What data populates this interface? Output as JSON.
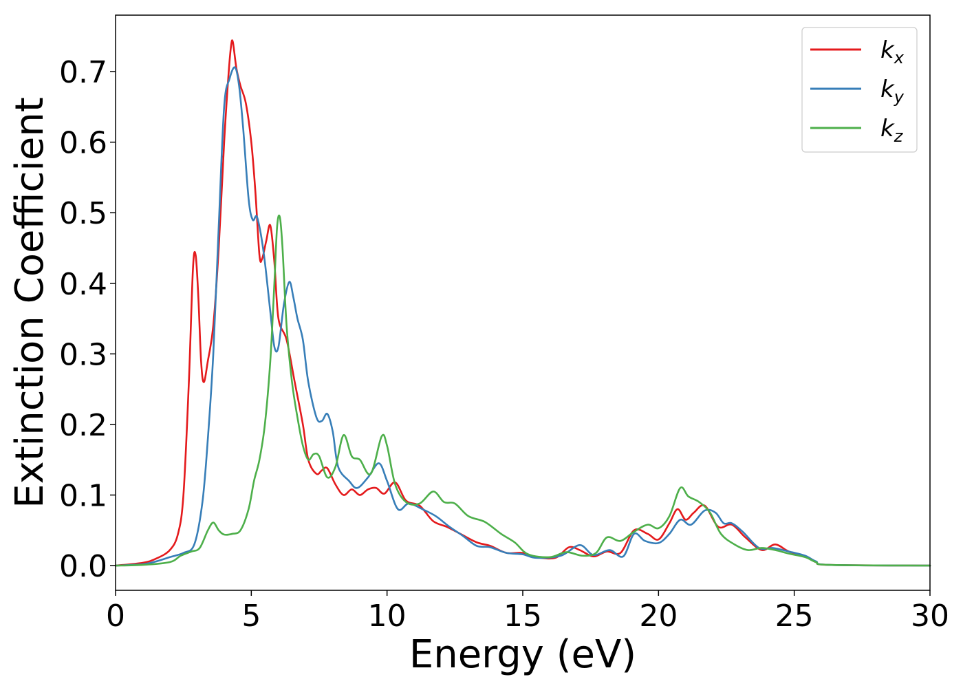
{
  "chart_data": {
    "type": "line",
    "title": "",
    "xlabel": "Energy (eV)",
    "ylabel": "Extinction Coefficient",
    "xlim": [
      0,
      30
    ],
    "ylim": [
      -0.035,
      0.78
    ],
    "xticks": [
      0,
      5,
      10,
      15,
      20,
      25,
      30
    ],
    "yticks": [
      0.0,
      0.1,
      0.2,
      0.3,
      0.4,
      0.5,
      0.6,
      0.7
    ],
    "grid": false,
    "legend_position": "top-right",
    "series": [
      {
        "name": "k_x",
        "label_main": "k",
        "label_sub": "x",
        "color": "#e41a1c",
        "points": [
          [
            0,
            0
          ],
          [
            1,
            0.004
          ],
          [
            1.5,
            0.01
          ],
          [
            2,
            0.022
          ],
          [
            2.3,
            0.045
          ],
          [
            2.5,
            0.1
          ],
          [
            2.7,
            0.26
          ],
          [
            2.85,
            0.42
          ],
          [
            2.95,
            0.44
          ],
          [
            3.05,
            0.38
          ],
          [
            3.15,
            0.29
          ],
          [
            3.25,
            0.26
          ],
          [
            3.4,
            0.29
          ],
          [
            3.6,
            0.34
          ],
          [
            3.8,
            0.45
          ],
          [
            4.0,
            0.6
          ],
          [
            4.15,
            0.69
          ],
          [
            4.25,
            0.735
          ],
          [
            4.32,
            0.742
          ],
          [
            4.45,
            0.705
          ],
          [
            4.6,
            0.68
          ],
          [
            4.8,
            0.655
          ],
          [
            5.0,
            0.6
          ],
          [
            5.15,
            0.53
          ],
          [
            5.3,
            0.44
          ],
          [
            5.4,
            0.435
          ],
          [
            5.55,
            0.46
          ],
          [
            5.7,
            0.482
          ],
          [
            5.85,
            0.43
          ],
          [
            6.0,
            0.35
          ],
          [
            6.3,
            0.32
          ],
          [
            6.6,
            0.26
          ],
          [
            6.9,
            0.2
          ],
          [
            7.1,
            0.15
          ],
          [
            7.4,
            0.13
          ],
          [
            7.6,
            0.135
          ],
          [
            7.8,
            0.138
          ],
          [
            8.1,
            0.115
          ],
          [
            8.4,
            0.1
          ],
          [
            8.7,
            0.108
          ],
          [
            9.0,
            0.1
          ],
          [
            9.3,
            0.108
          ],
          [
            9.6,
            0.11
          ],
          [
            9.9,
            0.102
          ],
          [
            10.3,
            0.118
          ],
          [
            10.7,
            0.092
          ],
          [
            11.2,
            0.085
          ],
          [
            11.7,
            0.063
          ],
          [
            12.2,
            0.055
          ],
          [
            12.7,
            0.045
          ],
          [
            13.3,
            0.033
          ],
          [
            13.8,
            0.028
          ],
          [
            14.4,
            0.018
          ],
          [
            15,
            0.018
          ],
          [
            15.5,
            0.012
          ],
          [
            16.2,
            0.011
          ],
          [
            16.7,
            0.026
          ],
          [
            17.1,
            0.022
          ],
          [
            17.6,
            0.013
          ],
          [
            18.1,
            0.02
          ],
          [
            18.6,
            0.018
          ],
          [
            19.1,
            0.05
          ],
          [
            19.6,
            0.045
          ],
          [
            20.0,
            0.037
          ],
          [
            20.4,
            0.06
          ],
          [
            20.7,
            0.08
          ],
          [
            21.0,
            0.065
          ],
          [
            21.3,
            0.075
          ],
          [
            21.7,
            0.085
          ],
          [
            22.2,
            0.055
          ],
          [
            22.7,
            0.058
          ],
          [
            23.2,
            0.04
          ],
          [
            23.8,
            0.022
          ],
          [
            24.3,
            0.03
          ],
          [
            24.8,
            0.02
          ],
          [
            25.4,
            0.013
          ],
          [
            25.8,
            0.005
          ],
          [
            26.3,
            0.001
          ],
          [
            30,
            0
          ]
        ]
      },
      {
        "name": "k_y",
        "label_main": "k",
        "label_sub": "y",
        "color": "#377eb8",
        "points": [
          [
            0,
            0
          ],
          [
            1,
            0.002
          ],
          [
            1.5,
            0.006
          ],
          [
            2,
            0.012
          ],
          [
            2.5,
            0.018
          ],
          [
            2.9,
            0.03
          ],
          [
            3.2,
            0.09
          ],
          [
            3.4,
            0.18
          ],
          [
            3.6,
            0.3
          ],
          [
            3.8,
            0.48
          ],
          [
            4.0,
            0.65
          ],
          [
            4.2,
            0.69
          ],
          [
            4.4,
            0.706
          ],
          [
            4.55,
            0.68
          ],
          [
            4.7,
            0.62
          ],
          [
            4.9,
            0.52
          ],
          [
            5.05,
            0.49
          ],
          [
            5.2,
            0.495
          ],
          [
            5.35,
            0.47
          ],
          [
            5.5,
            0.43
          ],
          [
            5.7,
            0.36
          ],
          [
            5.85,
            0.31
          ],
          [
            6.0,
            0.31
          ],
          [
            6.2,
            0.37
          ],
          [
            6.4,
            0.402
          ],
          [
            6.55,
            0.38
          ],
          [
            6.7,
            0.35
          ],
          [
            6.9,
            0.32
          ],
          [
            7.1,
            0.26
          ],
          [
            7.4,
            0.21
          ],
          [
            7.6,
            0.205
          ],
          [
            7.8,
            0.215
          ],
          [
            8.0,
            0.19
          ],
          [
            8.2,
            0.14
          ],
          [
            8.6,
            0.12
          ],
          [
            8.9,
            0.11
          ],
          [
            9.3,
            0.125
          ],
          [
            9.7,
            0.145
          ],
          [
            10,
            0.12
          ],
          [
            10.4,
            0.08
          ],
          [
            10.8,
            0.088
          ],
          [
            11.3,
            0.08
          ],
          [
            11.8,
            0.07
          ],
          [
            12.3,
            0.055
          ],
          [
            12.8,
            0.042
          ],
          [
            13.3,
            0.028
          ],
          [
            13.8,
            0.026
          ],
          [
            14.4,
            0.018
          ],
          [
            15,
            0.016
          ],
          [
            15.5,
            0.011
          ],
          [
            16.4,
            0.014
          ],
          [
            17.1,
            0.029
          ],
          [
            17.6,
            0.015
          ],
          [
            18.2,
            0.022
          ],
          [
            18.7,
            0.013
          ],
          [
            19.1,
            0.045
          ],
          [
            19.5,
            0.035
          ],
          [
            20,
            0.032
          ],
          [
            20.4,
            0.045
          ],
          [
            20.8,
            0.065
          ],
          [
            21.2,
            0.058
          ],
          [
            21.7,
            0.078
          ],
          [
            22.1,
            0.075
          ],
          [
            22.4,
            0.06
          ],
          [
            22.7,
            0.06
          ],
          [
            23.1,
            0.048
          ],
          [
            23.7,
            0.025
          ],
          [
            24.2,
            0.025
          ],
          [
            24.8,
            0.02
          ],
          [
            25.4,
            0.014
          ],
          [
            25.8,
            0.006
          ],
          [
            26.3,
            0.001
          ],
          [
            30,
            0
          ]
        ]
      },
      {
        "name": "k_z",
        "label_main": "k",
        "label_sub": "z",
        "color": "#4daf4a",
        "points": [
          [
            0,
            0
          ],
          [
            1,
            0.001
          ],
          [
            2,
            0.005
          ],
          [
            2.4,
            0.014
          ],
          [
            2.8,
            0.02
          ],
          [
            3.1,
            0.025
          ],
          [
            3.4,
            0.05
          ],
          [
            3.6,
            0.061
          ],
          [
            3.8,
            0.05
          ],
          [
            4.0,
            0.044
          ],
          [
            4.3,
            0.045
          ],
          [
            4.6,
            0.05
          ],
          [
            4.9,
            0.08
          ],
          [
            5.1,
            0.12
          ],
          [
            5.3,
            0.15
          ],
          [
            5.5,
            0.2
          ],
          [
            5.7,
            0.29
          ],
          [
            5.85,
            0.4
          ],
          [
            5.95,
            0.48
          ],
          [
            6.05,
            0.494
          ],
          [
            6.15,
            0.45
          ],
          [
            6.3,
            0.34
          ],
          [
            6.5,
            0.26
          ],
          [
            6.7,
            0.21
          ],
          [
            6.9,
            0.17
          ],
          [
            7.1,
            0.15
          ],
          [
            7.3,
            0.158
          ],
          [
            7.5,
            0.155
          ],
          [
            7.8,
            0.125
          ],
          [
            8.1,
            0.14
          ],
          [
            8.4,
            0.185
          ],
          [
            8.7,
            0.155
          ],
          [
            9.0,
            0.15
          ],
          [
            9.4,
            0.13
          ],
          [
            9.8,
            0.183
          ],
          [
            10.0,
            0.17
          ],
          [
            10.3,
            0.115
          ],
          [
            10.7,
            0.09
          ],
          [
            11.2,
            0.088
          ],
          [
            11.7,
            0.105
          ],
          [
            12.1,
            0.09
          ],
          [
            12.5,
            0.088
          ],
          [
            13.0,
            0.07
          ],
          [
            13.6,
            0.062
          ],
          [
            14.2,
            0.045
          ],
          [
            14.7,
            0.033
          ],
          [
            15.2,
            0.016
          ],
          [
            16,
            0.012
          ],
          [
            16.6,
            0.019
          ],
          [
            17.2,
            0.014
          ],
          [
            17.7,
            0.018
          ],
          [
            18.1,
            0.04
          ],
          [
            18.6,
            0.035
          ],
          [
            19.1,
            0.048
          ],
          [
            19.6,
            0.058
          ],
          [
            20,
            0.053
          ],
          [
            20.4,
            0.07
          ],
          [
            20.8,
            0.11
          ],
          [
            21.1,
            0.098
          ],
          [
            21.5,
            0.09
          ],
          [
            21.9,
            0.075
          ],
          [
            22.3,
            0.045
          ],
          [
            22.8,
            0.03
          ],
          [
            23.3,
            0.022
          ],
          [
            23.8,
            0.025
          ],
          [
            24.3,
            0.022
          ],
          [
            24.8,
            0.017
          ],
          [
            25.4,
            0.012
          ],
          [
            25.8,
            0.005
          ],
          [
            26.3,
            0.001
          ],
          [
            30,
            0
          ]
        ]
      }
    ]
  }
}
